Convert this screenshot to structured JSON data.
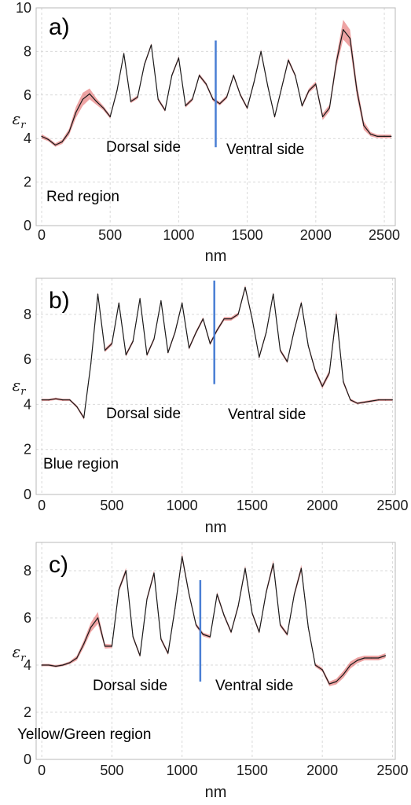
{
  "chart_data": [
    {
      "type": "line",
      "panel_label": "a)",
      "region_label": "Red region",
      "left_annotation": "Dorsal side",
      "right_annotation": "Ventral side",
      "xlabel": "nm",
      "ylabel": "ε",
      "ylabel_sub": "r",
      "xlim": [
        -40,
        2580
      ],
      "ylim": [
        0,
        10
      ],
      "xticks": [
        0,
        500,
        1000,
        1500,
        2000,
        2500
      ],
      "yticks": [
        0,
        2,
        4,
        6,
        8,
        10
      ],
      "grid": true,
      "divider_x": 1270,
      "divider_y": [
        3.6,
        8.5
      ],
      "line_color": "#1a1a1a",
      "band_color": "#e05a5a",
      "divider_color": "#4a7fd4",
      "series": [
        {
          "x": [
            0,
            50,
            100,
            150,
            200,
            250,
            300,
            350,
            400,
            450,
            500,
            550,
            600,
            650,
            700,
            750,
            800,
            850,
            900,
            950,
            1000,
            1050,
            1100,
            1150,
            1200,
            1250,
            1300,
            1350,
            1400,
            1450,
            1500,
            1550,
            1600,
            1650,
            1700,
            1750,
            1800,
            1850,
            1900,
            1950,
            2000,
            2050,
            2100,
            2150,
            2200,
            2250,
            2300,
            2350,
            2400,
            2450,
            2500,
            2550
          ],
          "y": [
            4.1,
            3.95,
            3.7,
            3.85,
            4.3,
            5.2,
            5.8,
            6.05,
            5.7,
            5.4,
            5.0,
            6.2,
            7.9,
            5.7,
            5.9,
            7.4,
            8.3,
            5.8,
            5.3,
            6.9,
            7.7,
            5.5,
            5.8,
            6.9,
            6.5,
            5.8,
            5.6,
            5.9,
            6.9,
            6.0,
            5.4,
            6.6,
            8.0,
            6.4,
            5.0,
            6.3,
            7.6,
            6.9,
            5.5,
            6.2,
            6.5,
            5.0,
            5.4,
            7.5,
            9.0,
            8.6,
            6.2,
            4.6,
            4.2,
            4.1,
            4.1,
            4.1
          ],
          "band": [
            0.1,
            0.08,
            0.08,
            0.1,
            0.15,
            0.25,
            0.3,
            0.25,
            0.15,
            0.1,
            0.08,
            0.08,
            0.08,
            0.08,
            0.08,
            0.08,
            0.08,
            0.08,
            0.08,
            0.08,
            0.08,
            0.08,
            0.08,
            0.08,
            0.08,
            0.08,
            0.08,
            0.08,
            0.08,
            0.08,
            0.08,
            0.08,
            0.1,
            0.08,
            0.08,
            0.08,
            0.1,
            0.08,
            0.08,
            0.1,
            0.12,
            0.15,
            0.15,
            0.25,
            0.45,
            0.4,
            0.3,
            0.2,
            0.1,
            0.08,
            0.08,
            0.08
          ]
        }
      ]
    },
    {
      "type": "line",
      "panel_label": "b)",
      "region_label": "Blue region",
      "left_annotation": "Dorsal side",
      "right_annotation": "Ventral side",
      "xlabel": "nm",
      "ylabel": "ε",
      "ylabel_sub": "r",
      "xlim": [
        -40,
        2520
      ],
      "ylim": [
        0,
        9.6
      ],
      "xticks": [
        0,
        500,
        1000,
        1500,
        2000,
        2500
      ],
      "yticks": [
        0,
        2,
        4,
        6,
        8
      ],
      "grid": true,
      "divider_x": 1230,
      "divider_y": [
        4.9,
        9.5
      ],
      "line_color": "#1a1a1a",
      "band_color": "#e05a5a",
      "divider_color": "#4a7fd4",
      "series": [
        {
          "x": [
            0,
            50,
            100,
            150,
            200,
            250,
            300,
            350,
            400,
            450,
            500,
            550,
            600,
            650,
            700,
            750,
            800,
            850,
            900,
            950,
            1000,
            1050,
            1100,
            1150,
            1200,
            1250,
            1300,
            1350,
            1400,
            1450,
            1500,
            1550,
            1600,
            1650,
            1700,
            1750,
            1800,
            1850,
            1900,
            1950,
            2000,
            2050,
            2100,
            2150,
            2200,
            2250,
            2300,
            2350,
            2400,
            2450,
            2500
          ],
          "y": [
            4.2,
            4.2,
            4.25,
            4.2,
            4.2,
            3.9,
            3.4,
            5.8,
            8.9,
            6.4,
            6.7,
            8.5,
            6.2,
            6.8,
            8.7,
            6.2,
            6.9,
            8.6,
            6.3,
            7.2,
            8.5,
            6.5,
            7.2,
            7.8,
            6.7,
            7.3,
            7.8,
            7.8,
            8.0,
            9.2,
            7.8,
            6.1,
            7.2,
            8.9,
            6.4,
            5.9,
            7.3,
            8.5,
            6.6,
            5.5,
            4.8,
            5.4,
            8.0,
            5.0,
            4.2,
            4.05,
            4.1,
            4.15,
            4.2,
            4.2,
            4.2
          ],
          "band": [
            0.05,
            0.05,
            0.05,
            0.05,
            0.05,
            0.06,
            0.08,
            0.08,
            0.1,
            0.08,
            0.08,
            0.08,
            0.08,
            0.08,
            0.08,
            0.08,
            0.08,
            0.08,
            0.08,
            0.08,
            0.08,
            0.08,
            0.08,
            0.08,
            0.08,
            0.08,
            0.08,
            0.08,
            0.08,
            0.1,
            0.08,
            0.08,
            0.08,
            0.1,
            0.08,
            0.08,
            0.08,
            0.1,
            0.08,
            0.1,
            0.1,
            0.12,
            0.2,
            0.1,
            0.06,
            0.05,
            0.05,
            0.05,
            0.05,
            0.05,
            0.05
          ]
        }
      ]
    },
    {
      "type": "line",
      "panel_label": "c)",
      "region_label": "Yellow/Green region",
      "left_annotation": "Dorsal side",
      "right_annotation": "Ventral side",
      "xlabel": "nm",
      "ylabel": "ε",
      "ylabel_sub": "r",
      "xlim": [
        -40,
        2520
      ],
      "ylim": [
        0,
        9.2
      ],
      "xticks": [
        0,
        500,
        1000,
        1500,
        2000,
        2500
      ],
      "yticks": [
        0,
        2,
        4,
        6,
        8
      ],
      "grid": true,
      "divider_x": 1130,
      "divider_y": [
        3.3,
        7.6
      ],
      "line_color": "#1a1a1a",
      "band_color": "#e05a5a",
      "divider_color": "#4a7fd4",
      "series": [
        {
          "x": [
            0,
            50,
            100,
            150,
            200,
            250,
            300,
            350,
            400,
            450,
            500,
            550,
            600,
            650,
            700,
            750,
            800,
            850,
            900,
            950,
            1000,
            1050,
            1100,
            1150,
            1200,
            1250,
            1300,
            1350,
            1400,
            1450,
            1500,
            1550,
            1600,
            1650,
            1700,
            1750,
            1800,
            1850,
            1900,
            1950,
            2000,
            2050,
            2100,
            2150,
            2200,
            2250,
            2300,
            2350,
            2400,
            2450
          ],
          "y": [
            4.0,
            4.0,
            3.95,
            4.0,
            4.1,
            4.3,
            4.9,
            5.6,
            6.0,
            4.8,
            4.8,
            7.2,
            8.0,
            5.2,
            4.4,
            6.8,
            7.9,
            5.1,
            4.5,
            6.4,
            8.6,
            7.0,
            5.7,
            5.3,
            5.2,
            7.0,
            6.1,
            5.4,
            6.5,
            8.1,
            6.2,
            5.4,
            7.1,
            8.3,
            5.7,
            5.3,
            7.0,
            8.1,
            5.6,
            4.0,
            3.8,
            3.2,
            3.3,
            3.6,
            4.0,
            4.2,
            4.3,
            4.3,
            4.3,
            4.4
          ],
          "band": [
            0.05,
            0.05,
            0.05,
            0.05,
            0.06,
            0.1,
            0.15,
            0.2,
            0.25,
            0.1,
            0.08,
            0.1,
            0.12,
            0.08,
            0.08,
            0.1,
            0.12,
            0.08,
            0.08,
            0.1,
            0.15,
            0.1,
            0.08,
            0.08,
            0.08,
            0.1,
            0.08,
            0.08,
            0.1,
            0.12,
            0.08,
            0.08,
            0.1,
            0.15,
            0.08,
            0.08,
            0.1,
            0.15,
            0.1,
            0.08,
            0.08,
            0.1,
            0.12,
            0.15,
            0.15,
            0.12,
            0.1,
            0.1,
            0.1,
            0.1
          ]
        }
      ]
    }
  ]
}
